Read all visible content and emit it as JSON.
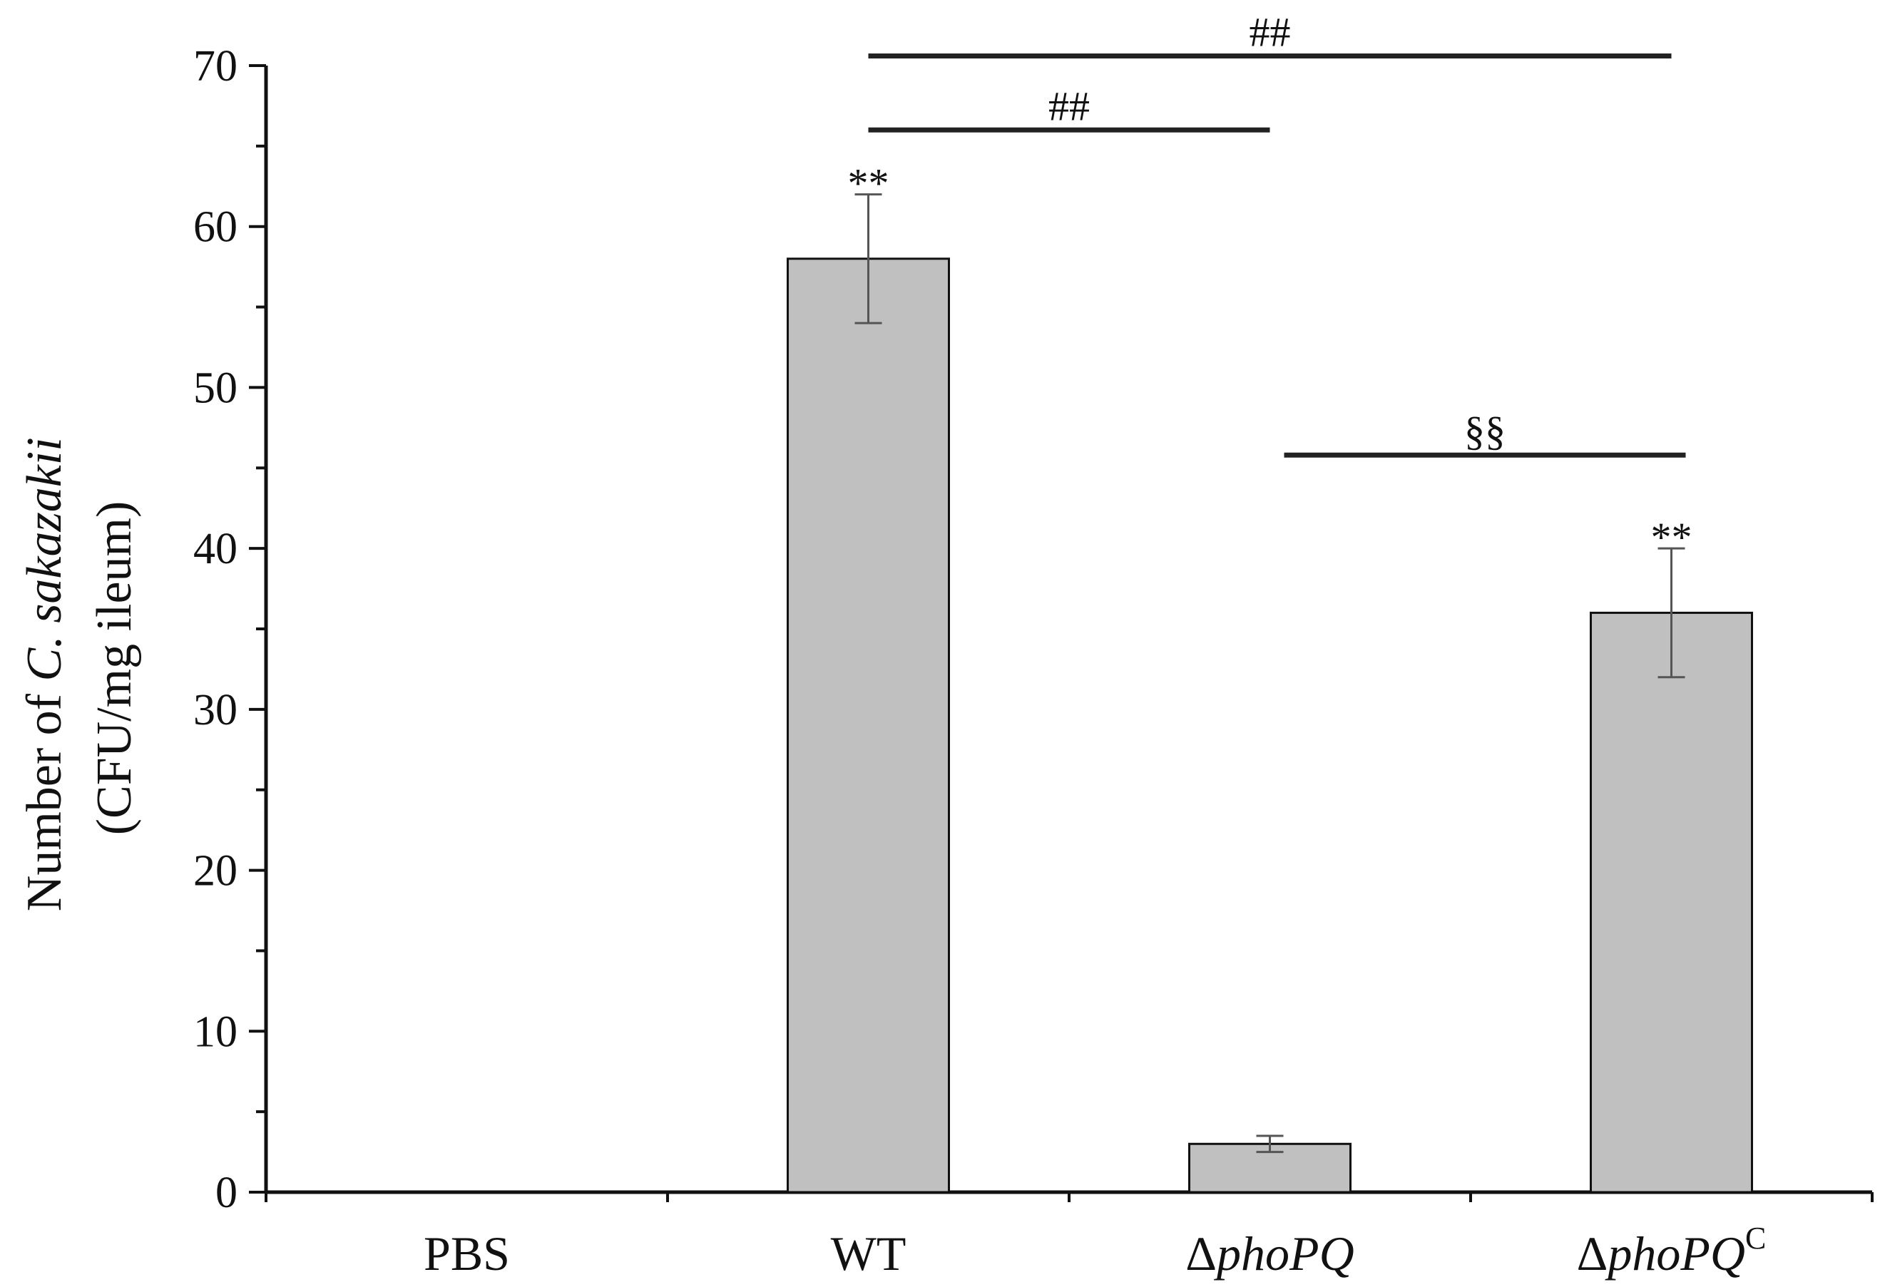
{
  "chart_data": {
    "type": "bar",
    "categories": [
      "PBS",
      "WT",
      "ΔphoPQ",
      "ΔphoPQC"
    ],
    "category_labels": [
      {
        "prefix": "",
        "italic": "",
        "sup": "",
        "plain": "PBS"
      },
      {
        "prefix": "",
        "italic": "",
        "sup": "",
        "plain": "WT"
      },
      {
        "prefix": "Δ",
        "italic": "phoPQ",
        "sup": "",
        "plain": ""
      },
      {
        "prefix": "Δ",
        "italic": "phoPQ",
        "sup": "C",
        "plain": ""
      }
    ],
    "values": [
      0,
      58,
      3,
      36
    ],
    "errors": [
      0,
      4,
      0.5,
      4
    ],
    "bar_color": "#c0c0c0",
    "ylabel": {
      "line1_prefix": "Number of ",
      "line1_italic": "C. sakazakii",
      "line2": "(CFU/mg ileum)"
    },
    "ylim": [
      0,
      70
    ],
    "yticks": [
      0,
      10,
      20,
      30,
      40,
      50,
      60,
      70
    ],
    "point_annotations": [
      {
        "category": 1,
        "text": "**"
      },
      {
        "category": 3,
        "text": "**"
      }
    ],
    "significance_brackets": [
      {
        "from": 1,
        "to": 3,
        "level": 70.6,
        "text": "##"
      },
      {
        "from": 1,
        "to": 2,
        "level": 66.0,
        "text": "##"
      },
      {
        "from": 2,
        "to": 3,
        "level": 45.8,
        "text": "§§"
      }
    ],
    "grid": false,
    "legend": "none"
  }
}
